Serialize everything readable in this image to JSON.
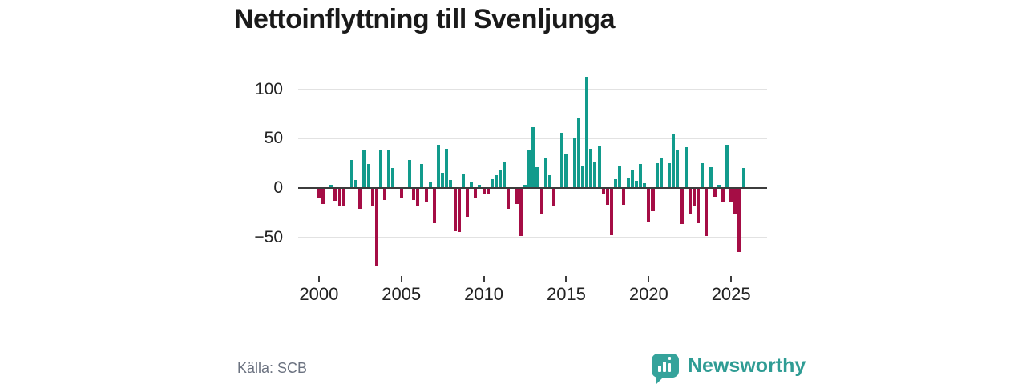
{
  "header": {
    "title": "Nettoinflyttning till Svenljunga"
  },
  "footer": {
    "source": "Källa: SCB",
    "brand": "Newsworthy"
  },
  "colors": {
    "positive": "#129b8c",
    "negative": "#a50d45",
    "axis": "#3c3c3c",
    "gridline": "#e2e2e2",
    "title_text": "#1a1a1a",
    "tick_label": "#222222",
    "source_text": "#6b7280",
    "logo": "#2f9c94"
  },
  "chart_data": {
    "type": "bar",
    "title": "Nettoinflyttning till Svenljunga",
    "frequency": "quarterly",
    "x_start_year": 2000,
    "x_tick_labels": [
      "2000",
      "2005",
      "2010",
      "2015",
      "2020",
      "2025"
    ],
    "y_ticks": [
      {
        "value": 100,
        "label": "100"
      },
      {
        "value": 50,
        "label": "50"
      },
      {
        "value": 0,
        "label": "0"
      },
      {
        "value": -50,
        "label": "−50"
      }
    ],
    "ylim": [
      -81,
      117
    ],
    "grid": "horizontal",
    "legend": "none",
    "values": [
      -10,
      -15,
      0,
      3,
      -12,
      -18,
      -17,
      0,
      28,
      8,
      -20,
      38,
      24,
      -18,
      -78,
      39,
      -11,
      39,
      20,
      0,
      -9,
      0,
      28,
      -11,
      -18,
      24,
      -14,
      6,
      -35,
      44,
      15,
      40,
      8,
      -43,
      -44,
      14,
      -28,
      6,
      -9,
      3,
      -5,
      -5,
      9,
      13,
      18,
      27,
      -20,
      0,
      -15,
      -48,
      3,
      39,
      62,
      21,
      -26,
      31,
      13,
      -18,
      0,
      56,
      35,
      0,
      50,
      71,
      22,
      113,
      40,
      26,
      42,
      -5,
      -16,
      -47,
      9,
      22,
      -16,
      10,
      19,
      7,
      24,
      5,
      -33,
      -23,
      25,
      30,
      0,
      25,
      54,
      38,
      -36,
      41,
      -26,
      -18,
      -35,
      25,
      -48,
      21,
      -8,
      3,
      -13,
      44,
      -13,
      -26,
      -64,
      20
    ]
  }
}
